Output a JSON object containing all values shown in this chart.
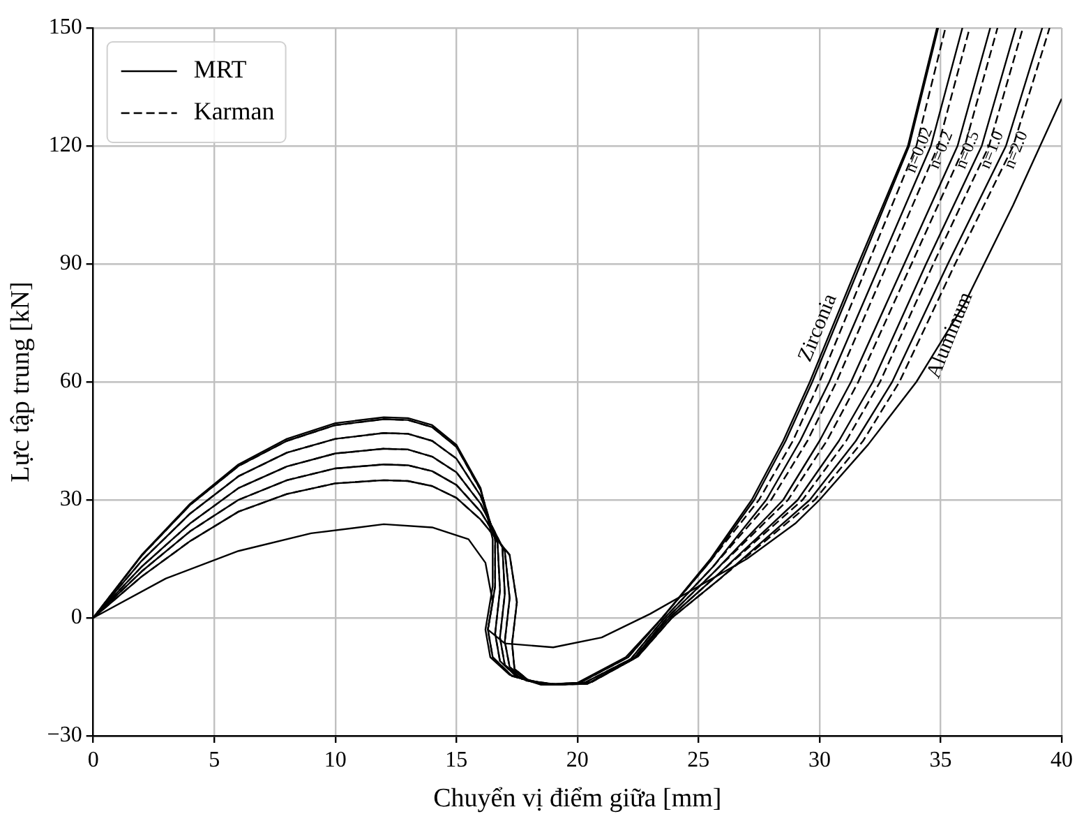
{
  "chart_data": {
    "type": "line",
    "xlabel": "Chuyển vị điểm giữa [mm]",
    "ylabel": "Lực tập trung [kN]",
    "xlim": [
      0,
      40
    ],
    "xticks": [
      0,
      5,
      10,
      15,
      20,
      25,
      30,
      35,
      40
    ],
    "ylim": [
      -30,
      150
    ],
    "yticks": [
      -30,
      0,
      30,
      60,
      90,
      120,
      150
    ],
    "grid": true,
    "legend": "top left",
    "marker": "none",
    "series": [
      {
        "name": "MRT",
        "color": "#000000",
        "line_style": "solid",
        "x": [
          0,
          2,
          4,
          6,
          8,
          10,
          12,
          13,
          14,
          15,
          16,
          16.5,
          16.5,
          16.2,
          16.4,
          17.2,
          18.5,
          20,
          22,
          23.5,
          25.5,
          27.2,
          28.5,
          29.6,
          31.6,
          33.65,
          34.85
        ],
        "values": [
          0,
          16,
          29,
          39,
          45.5,
          49.5,
          51,
          50.8,
          49,
          44,
          33,
          20,
          8,
          -3,
          -10,
          -14.5,
          -17,
          -16.5,
          -10,
          0,
          15,
          30,
          45,
          60,
          90,
          120,
          150
        ]
      },
      {
        "color": "#000000",
        "line_style": "solid",
        "x": [
          0,
          2,
          4,
          6,
          8,
          10,
          12,
          13,
          14,
          15,
          16,
          16.6,
          16.6,
          16.3,
          16.5,
          17.3,
          18.6,
          20.1,
          22.1,
          23.5,
          25.5,
          27.3,
          28.6,
          29.7,
          31.7,
          33.7,
          34.9
        ],
        "values": [
          0,
          15.8,
          28.7,
          38.6,
          45,
          49,
          50.5,
          50.3,
          48.5,
          43.5,
          32.5,
          20,
          8,
          -3,
          -10,
          -14.8,
          -17,
          -16.5,
          -10,
          0,
          14.5,
          30,
          45,
          60,
          90,
          120,
          150
        ]
      },
      {
        "color": "#000000",
        "line_style": "solid",
        "x": [
          0,
          2,
          4,
          6,
          8,
          10,
          12,
          13,
          14,
          15,
          16,
          16.7,
          16.8,
          16.6,
          16.8,
          17.5,
          18.7,
          20.2,
          22.2,
          23.6,
          25.6,
          27.8,
          29.2,
          30.4,
          32.5,
          34.6,
          35.9
        ],
        "values": [
          0,
          14.5,
          26.5,
          36,
          42,
          45.5,
          47,
          46.8,
          45,
          40.5,
          31,
          19,
          7,
          -4,
          -11,
          -15,
          -17,
          -16.8,
          -10.5,
          0,
          13,
          30,
          45,
          60,
          90,
          120,
          150
        ]
      },
      {
        "color": "#000000",
        "line_style": "solid",
        "x": [
          0,
          2,
          4,
          6,
          8,
          10,
          12,
          13,
          14,
          15,
          16,
          16.9,
          17,
          16.8,
          17,
          17.7,
          18.9,
          20.4,
          22.3,
          23.7,
          25.7,
          28.5,
          30,
          31.3,
          33.5,
          35.7,
          37.05
        ],
        "values": [
          0,
          13,
          24,
          33,
          38.5,
          41.8,
          43,
          42.8,
          41,
          37,
          29,
          18,
          6,
          -5,
          -12,
          -15.5,
          -17,
          -16.8,
          -10.5,
          0,
          12,
          30,
          45,
          60,
          90,
          120,
          150
        ]
      },
      {
        "color": "#000000",
        "line_style": "solid",
        "x": [
          0,
          2,
          4,
          6,
          8,
          10,
          12,
          13,
          14,
          15,
          16,
          17,
          17.2,
          17,
          17.2,
          17.9,
          19,
          20.5,
          22.4,
          23.8,
          25.8,
          29.1,
          30.8,
          32.2,
          34.4,
          36.7,
          38.1
        ],
        "values": [
          0,
          11.8,
          22,
          30,
          35,
          38,
          39,
          38.8,
          37.3,
          33.8,
          27,
          17,
          5,
          -6,
          -12.5,
          -16,
          -17,
          -16.5,
          -10,
          0,
          11,
          30,
          45,
          60,
          90,
          120,
          150
        ]
      },
      {
        "color": "#000000",
        "line_style": "solid",
        "x": [
          0,
          2,
          4,
          6,
          8,
          10,
          12,
          13,
          14,
          15,
          16,
          17.2,
          17.5,
          17.3,
          17.4,
          18,
          19.2,
          20.6,
          22.5,
          23.9,
          25.9,
          29.6,
          31.5,
          33,
          35.3,
          37.7,
          39.2
        ],
        "values": [
          0,
          10.5,
          19.5,
          27,
          31.5,
          34.2,
          35,
          34.8,
          33.5,
          30.5,
          25,
          16,
          4,
          -6.5,
          -13,
          -16,
          -17,
          -16.3,
          -9.8,
          0,
          10,
          30,
          45,
          60,
          90,
          120,
          150
        ]
      },
      {
        "color": "#000000",
        "line_style": "solid",
        "x": [
          0,
          3,
          6,
          9,
          12,
          14,
          15.5,
          16.2,
          16.5,
          16.3,
          17,
          19,
          21,
          23,
          25,
          27,
          29,
          30,
          32,
          34,
          36,
          38,
          40
        ],
        "values": [
          0,
          10,
          17,
          21.5,
          23.8,
          23,
          20,
          14,
          4,
          -3,
          -6.5,
          -7.5,
          -5,
          1,
          8,
          15,
          24,
          30,
          44,
          60,
          80,
          105,
          132
        ]
      },
      {
        "name": "Karman",
        "color": "#000000",
        "line_style": "dashed",
        "x": [
          0,
          2,
          4,
          6,
          8,
          10,
          12,
          13,
          14,
          15,
          16,
          16.6,
          16.6,
          16.3,
          16.5,
          17.3,
          18.6,
          20.1,
          22.1,
          23.5,
          25.5,
          27.5,
          28.9,
          30,
          32,
          34,
          35.2
        ],
        "values": [
          0,
          15.8,
          28.7,
          38.6,
          45,
          49,
          50.5,
          50.3,
          48.5,
          43.5,
          32.5,
          20,
          8,
          -3,
          -10,
          -14.8,
          -17,
          -16.5,
          -10,
          0,
          14.5,
          30,
          45,
          60,
          90,
          120,
          150
        ]
      },
      {
        "color": "#000000",
        "line_style": "dashed",
        "x": [
          0,
          2,
          4,
          6,
          8,
          10,
          12,
          13,
          14,
          15,
          16,
          16.7,
          16.8,
          16.6,
          16.8,
          17.5,
          18.7,
          20.2,
          22.2,
          23.6,
          25.6,
          28,
          29.5,
          30.7,
          32.8,
          34.9,
          36.2
        ],
        "values": [
          0,
          14.5,
          26.5,
          36,
          42,
          45.5,
          47,
          46.8,
          45,
          40.5,
          31,
          19,
          7,
          -4,
          -11,
          -15,
          -17,
          -16.8,
          -10.5,
          0,
          13,
          30,
          45,
          60,
          90,
          120,
          150
        ]
      },
      {
        "color": "#000000",
        "line_style": "dashed",
        "x": [
          0,
          2,
          4,
          6,
          8,
          10,
          12,
          13,
          14,
          15,
          16,
          16.9,
          17,
          16.8,
          17,
          17.7,
          18.9,
          20.4,
          22.3,
          23.7,
          25.7,
          28.7,
          30.3,
          31.6,
          33.8,
          36,
          37.35
        ],
        "values": [
          0,
          13,
          24,
          33,
          38.5,
          41.8,
          43,
          42.8,
          41,
          37,
          29,
          18,
          6,
          -5,
          -12,
          -15.5,
          -17,
          -16.8,
          -10.5,
          0,
          12,
          30,
          45,
          60,
          90,
          120,
          150
        ]
      },
      {
        "color": "#000000",
        "line_style": "dashed",
        "x": [
          0,
          2,
          4,
          6,
          8,
          10,
          12,
          13,
          14,
          15,
          16,
          17,
          17.2,
          17,
          17.2,
          17.9,
          19,
          20.5,
          22.4,
          23.8,
          25.8,
          29.3,
          31.1,
          32.5,
          34.7,
          37,
          38.4
        ],
        "values": [
          0,
          11.8,
          22,
          30,
          35,
          38,
          39,
          38.8,
          37.3,
          33.8,
          27,
          17,
          5,
          -6,
          -12.5,
          -16,
          -17,
          -16.5,
          -10,
          0,
          11,
          30,
          45,
          60,
          90,
          120,
          150
        ]
      },
      {
        "color": "#000000",
        "line_style": "dashed",
        "x": [
          0,
          2,
          4,
          6,
          8,
          10,
          12,
          13,
          14,
          15,
          16,
          17.2,
          17.5,
          17.3,
          17.4,
          18,
          19.2,
          20.6,
          22.5,
          23.9,
          25.9,
          29.8,
          31.8,
          33.3,
          35.6,
          38,
          39.5
        ],
        "values": [
          0,
          10.5,
          19.5,
          27,
          31.5,
          34.2,
          35,
          34.8,
          33.5,
          30.5,
          25,
          16,
          4,
          -6.5,
          -13,
          -16,
          -17,
          -16.3,
          -9.8,
          0,
          10,
          30,
          45,
          60,
          90,
          120,
          150
        ]
      }
    ],
    "annotations": [
      {
        "text": "Zirconia",
        "x": 29.6,
        "y": 60
      },
      {
        "text": "Aluminum",
        "x": 34,
        "y": 60
      },
      {
        "text": "n=0.02",
        "x": 33.7,
        "y": 120
      },
      {
        "text": "n=0.2",
        "x": 34.6,
        "y": 120
      },
      {
        "text": "n=0.5",
        "x": 35.7,
        "y": 120
      },
      {
        "text": "n=1.0",
        "x": 36.7,
        "y": 120
      },
      {
        "text": "n=2.0",
        "x": 37.7,
        "y": 120
      }
    ]
  }
}
